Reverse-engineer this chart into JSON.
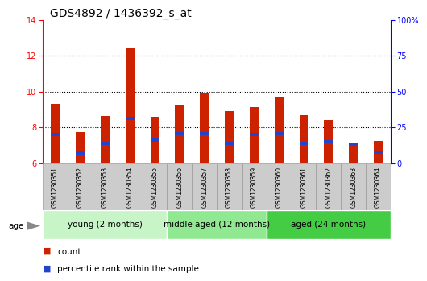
{
  "title": "GDS4892 / 1436392_s_at",
  "samples": [
    "GSM1230351",
    "GSM1230352",
    "GSM1230353",
    "GSM1230354",
    "GSM1230355",
    "GSM1230356",
    "GSM1230357",
    "GSM1230358",
    "GSM1230359",
    "GSM1230360",
    "GSM1230361",
    "GSM1230362",
    "GSM1230363",
    "GSM1230364"
  ],
  "count_values": [
    9.3,
    7.75,
    8.65,
    12.45,
    8.6,
    9.25,
    9.9,
    8.9,
    9.15,
    9.7,
    8.7,
    8.4,
    7.05,
    7.25
  ],
  "percentile_values": [
    7.6,
    6.55,
    7.1,
    8.5,
    7.3,
    7.65,
    7.65,
    7.1,
    7.6,
    7.65,
    7.1,
    7.2,
    7.05,
    6.6
  ],
  "groups": [
    {
      "label": "young (2 months)",
      "indices": [
        0,
        1,
        2,
        3,
        4
      ],
      "color": "#c8f5c8"
    },
    {
      "label": "middle aged (12 months)",
      "indices": [
        5,
        6,
        7,
        8
      ],
      "color": "#90e890"
    },
    {
      "label": "aged (24 months)",
      "indices": [
        9,
        10,
        11,
        12,
        13
      ],
      "color": "#44cc44"
    }
  ],
  "ylim_left": [
    6,
    14
  ],
  "ylim_right": [
    0,
    100
  ],
  "yticks_left": [
    6,
    8,
    10,
    12,
    14
  ],
  "yticks_right": [
    0,
    25,
    50,
    75,
    100
  ],
  "ytick_right_labels": [
    "0",
    "25",
    "50",
    "75",
    "100%"
  ],
  "gridlines_at": [
    8,
    10,
    12
  ],
  "bar_color": "#cc2200",
  "percentile_color": "#2244cc",
  "bar_width": 0.35,
  "base_value": 6,
  "title_fontsize": 10,
  "tick_fontsize": 7,
  "label_fontsize": 5.5,
  "group_fontsize": 7.5,
  "legend_fontsize": 7.5,
  "label_area_color": "#cccccc",
  "label_area_edgecolor": "#999999",
  "age_label": "age",
  "legend_count": "count",
  "legend_percentile": "percentile rank within the sample"
}
